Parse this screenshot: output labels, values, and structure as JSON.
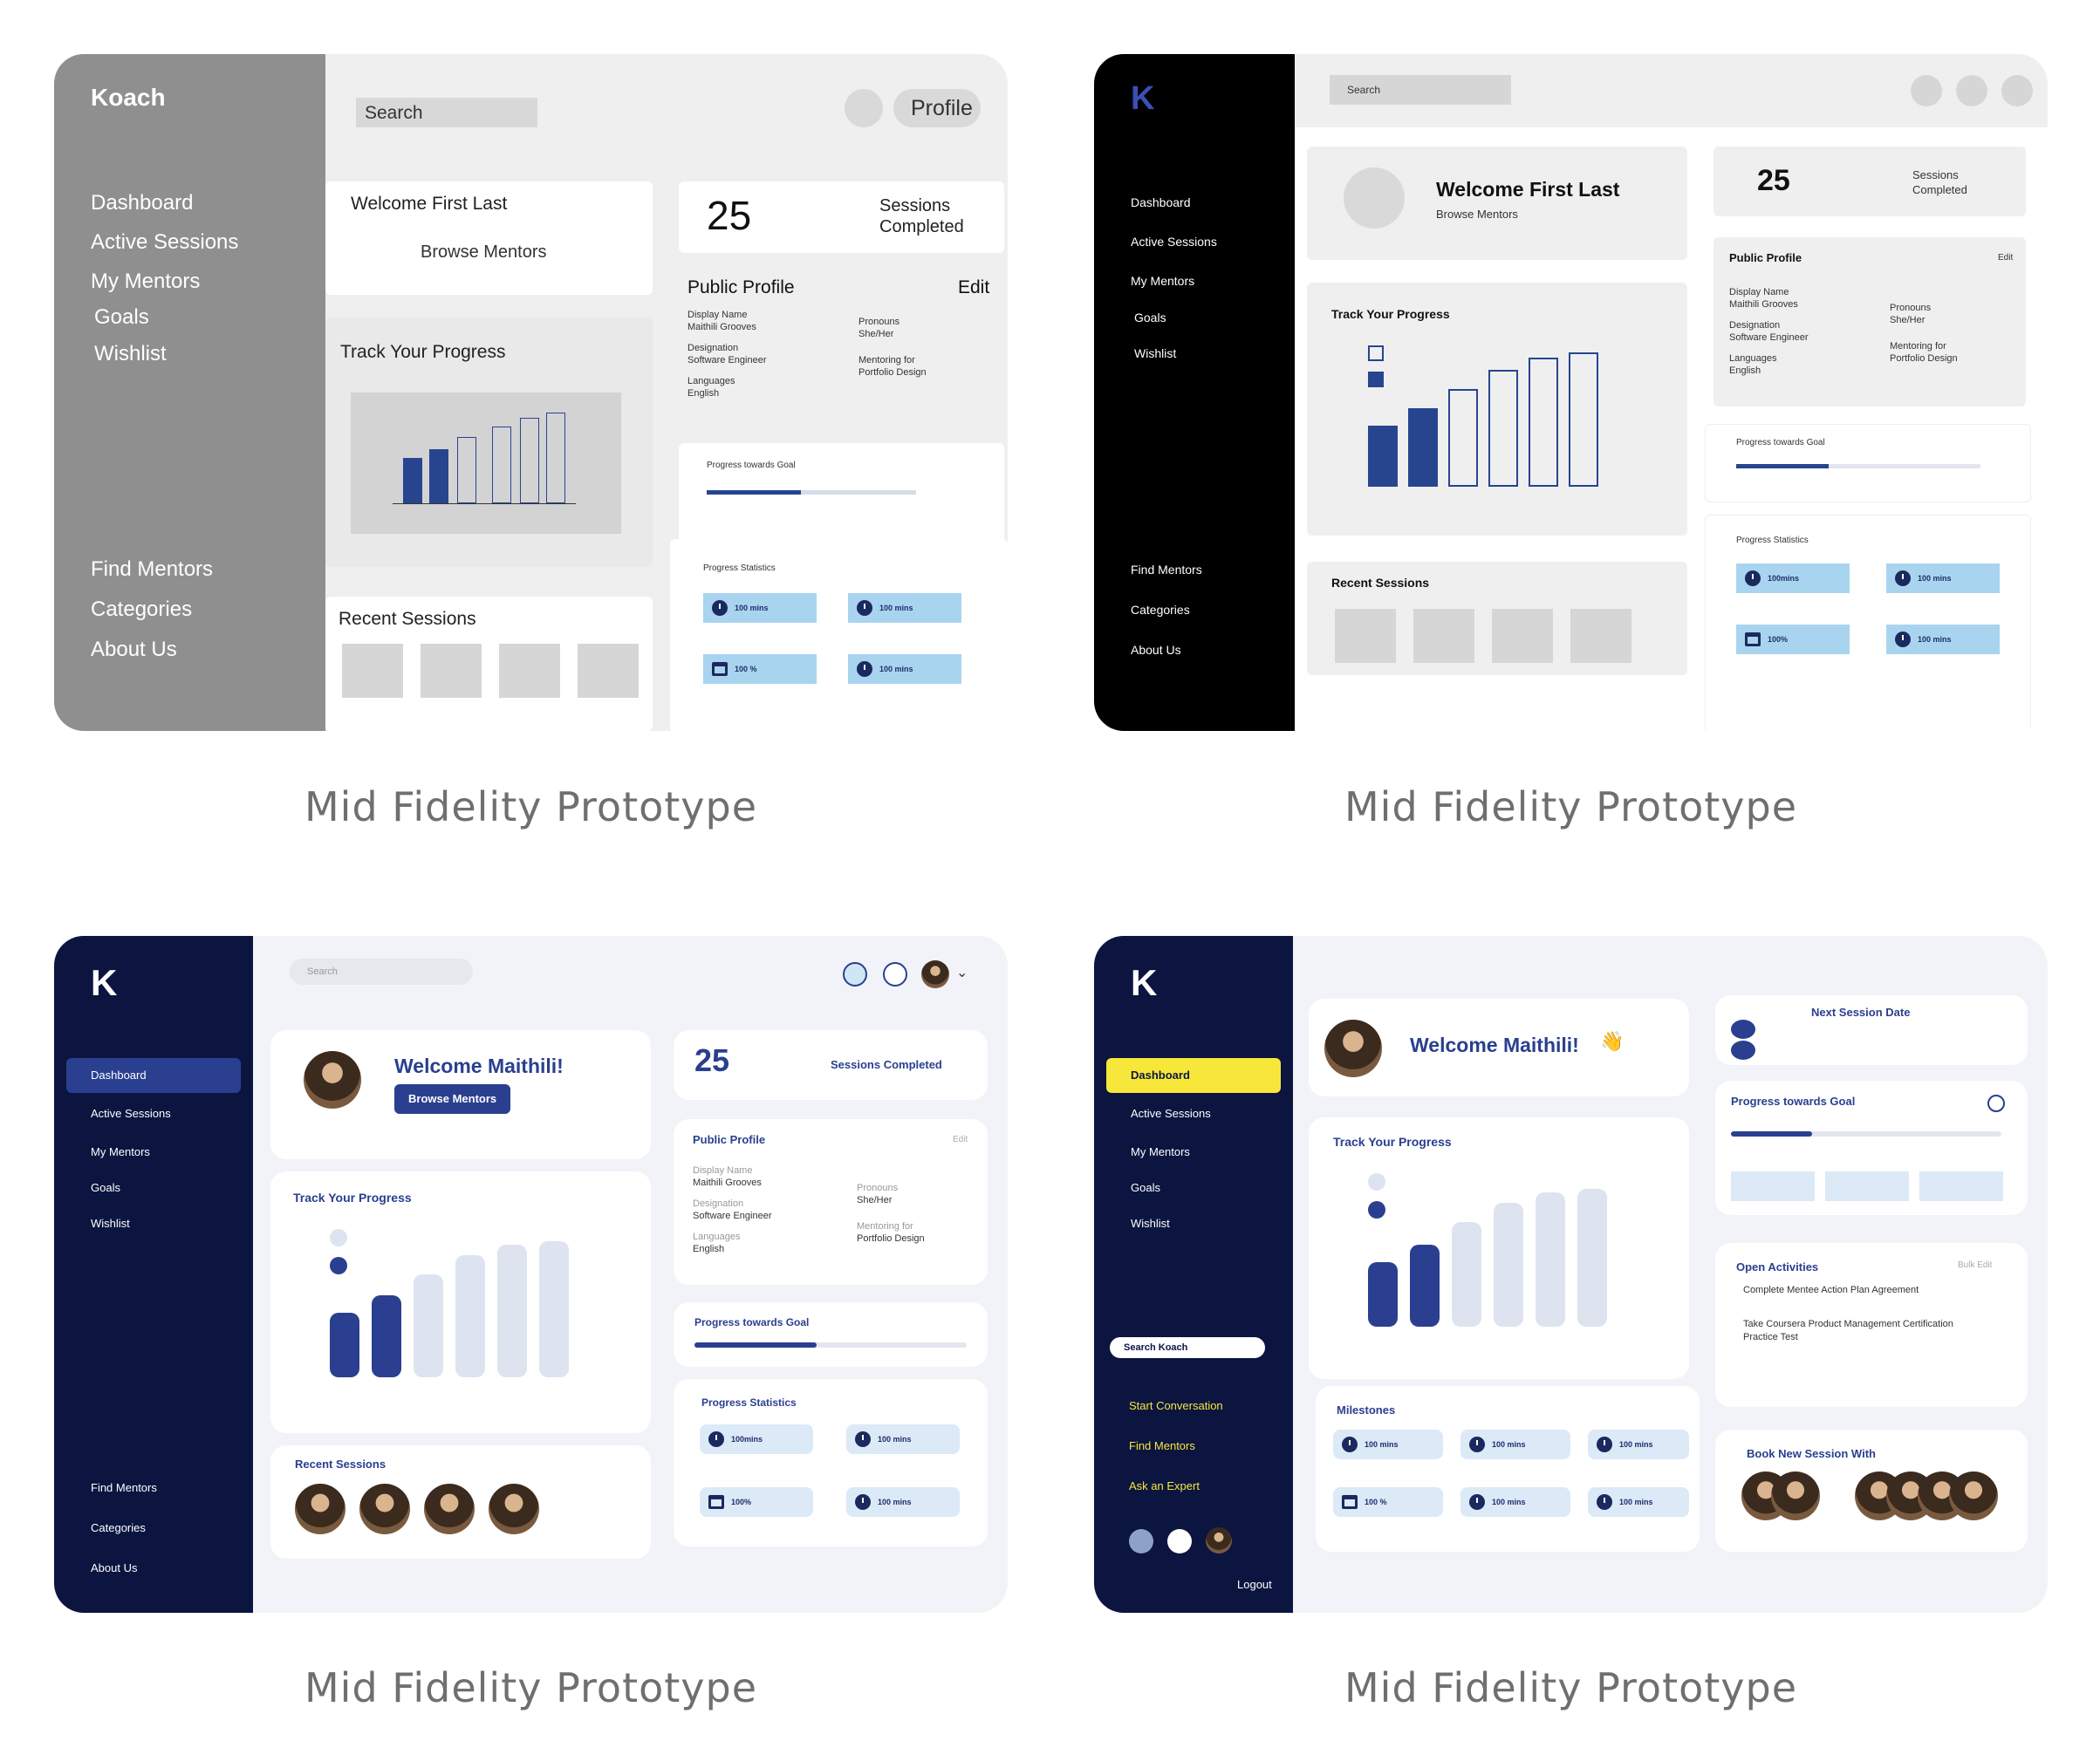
{
  "captions": [
    "Mid Fidelity Prototype",
    "Mid Fidelity Prototype",
    "Mid Fidelity Prototype",
    "Mid Fidelity Prototype"
  ],
  "p1": {
    "brand": "Koach",
    "nav_top": [
      "Dashboard",
      "Active Sessions",
      "My Mentors",
      "Goals",
      "Wishlist"
    ],
    "nav_bottom": [
      "Find Mentors",
      "Categories",
      "About Us"
    ],
    "search_placeholder": "Search",
    "profile_label": "Profile",
    "welcome": "Welcome First Last",
    "browse": "Browse Mentors",
    "sessions_count": "25",
    "sessions_label": "Sessions Completed",
    "public_profile": "Public Profile",
    "edit": "Edit",
    "fields_left": [
      "Display Name",
      "Maithili Grooves",
      "Designation",
      "Software Engineer",
      "Languages",
      "English"
    ],
    "fields_right": [
      "Pronouns",
      "She/Her",
      "Mentoring for",
      "Portfolio Design"
    ],
    "track": "Track Your Progress",
    "progress_goal": "Progress towards Goal",
    "progress_stats": "Progress Statistics",
    "stats": [
      "100 mins",
      "100 mins",
      "100 %",
      "100 mins"
    ],
    "recent": "Recent Sessions"
  },
  "p2": {
    "brand": "K",
    "nav_top": [
      "Dashboard",
      "Active Sessions",
      "My Mentors",
      "Goals",
      "Wishlist"
    ],
    "nav_bottom": [
      "Find Mentors",
      "Categories",
      "About Us"
    ],
    "search_placeholder": "Search",
    "welcome": "Welcome First Last",
    "browse": "Browse Mentors",
    "sessions_count": "25",
    "sessions_label": "Sessions Completed",
    "public_profile": "Public Profile",
    "edit": "Edit",
    "fields_left": [
      "Display Name",
      "Maithili Grooves",
      "Designation",
      "Software Engineer",
      "Languages",
      "English"
    ],
    "fields_right": [
      "Pronouns",
      "She/Her",
      "Mentoring for",
      "Portfolio Design"
    ],
    "track": "Track Your Progress",
    "progress_goal": "Progress towards Goal",
    "progress_stats": "Progress Statistics",
    "stats": [
      "100mins",
      "100 mins",
      "100%",
      "100 mins"
    ],
    "recent": "Recent Sessions"
  },
  "p3": {
    "brand": "K",
    "nav_top": [
      "Dashboard",
      "Active Sessions",
      "My Mentors",
      "Goals",
      "Wishlist"
    ],
    "nav_bottom": [
      "Find Mentors",
      "Categories",
      "About Us"
    ],
    "search_placeholder": "Search",
    "welcome": "Welcome Maithili!",
    "browse": "Browse Mentors",
    "sessions_count": "25",
    "sessions_label": "Sessions Completed",
    "public_profile": "Public Profile",
    "edit": "Edit",
    "fields_left": [
      "Display Name",
      "Maithili Grooves",
      "Designation",
      "Software Engineer",
      "Languages",
      "English"
    ],
    "fields_right": [
      "Pronouns",
      "She/Her",
      "Mentoring for",
      "Portfolio Design"
    ],
    "track": "Track Your Progress",
    "progress_goal": "Progress towards Goal",
    "progress_stats": "Progress Statistics",
    "stats": [
      "100mins",
      "100 mins",
      "100%",
      "100 mins"
    ],
    "recent": "Recent Sessions"
  },
  "p4": {
    "brand": "K",
    "nav_top": [
      "Dashboard",
      "Active Sessions",
      "My Mentors",
      "Goals",
      "Wishlist"
    ],
    "search_label": "Search Koach",
    "nav_bottom": [
      "Start Conversation",
      "Find Mentors",
      "Ask an Expert"
    ],
    "logout": "Logout",
    "welcome": "Welcome Maithili!",
    "next_session": "Next Session Date",
    "progress_goal": "Progress towards Goal",
    "track": "Track Your Progress",
    "open_activities": "Open Activities",
    "bulk_edit": "Bulk Edit",
    "activities": [
      "Complete Mentee Action Plan Agreement",
      "Take Coursera Product Management Certification Practice Test"
    ],
    "milestones": "Milestones",
    "stats": [
      "100 mins",
      "100 mins",
      "100 mins",
      "100 %",
      "100 mins",
      "100 mins"
    ],
    "book": "Book New Session With"
  },
  "colors": {
    "navy": "#0b1540",
    "accent": "#2a3f8f",
    "yellow": "#f7e73a",
    "gray_side": "#8f8f8f"
  }
}
